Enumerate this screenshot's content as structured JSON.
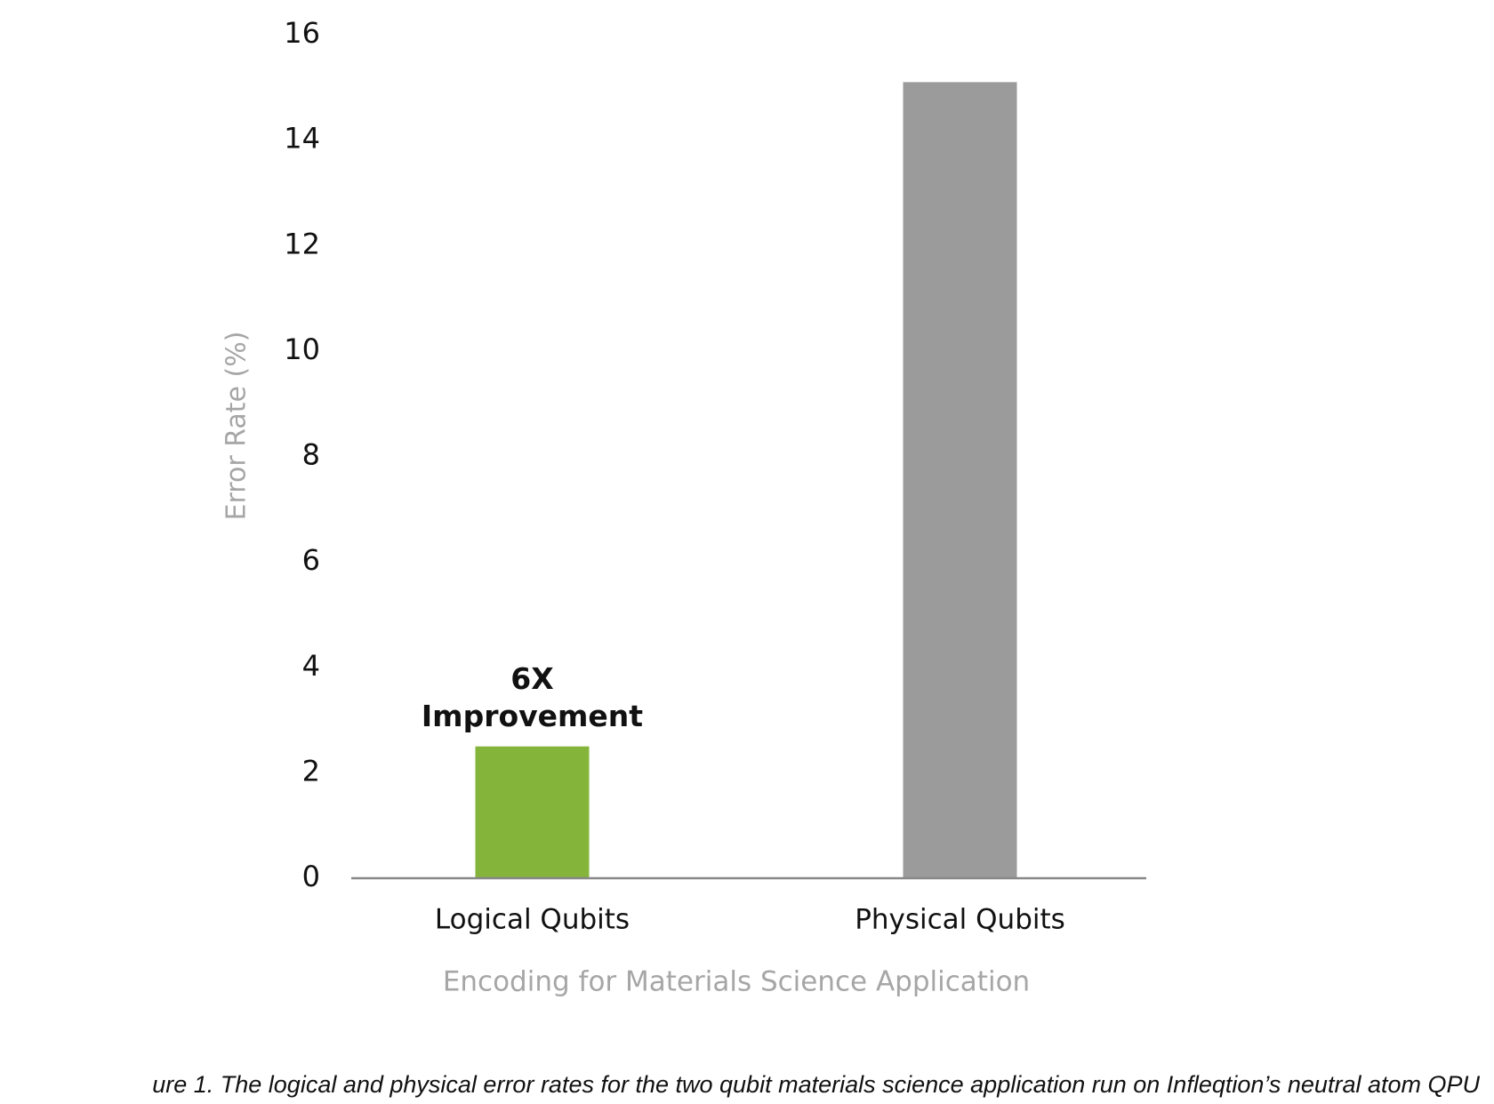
{
  "chart_data": {
    "type": "bar",
    "categories": [
      "Logical Qubits",
      "Physical Qubits"
    ],
    "values": [
      2.5,
      15.1
    ],
    "colors": [
      "#84b53a",
      "#9b9b9b"
    ],
    "ylabel": "Error Rate (%)",
    "xlabel": "Encoding for Materials Science Application",
    "annotations": [
      "6X",
      "Improvement"
    ],
    "ylim": [
      0,
      16
    ],
    "yticks": [
      0,
      2,
      4,
      6,
      8,
      10,
      12,
      14,
      16
    ],
    "grid": false,
    "caption": "ure 1. The logical and physical error rates for the two qubit materials science application run on Infleqtion’s neutral atom QPU"
  }
}
